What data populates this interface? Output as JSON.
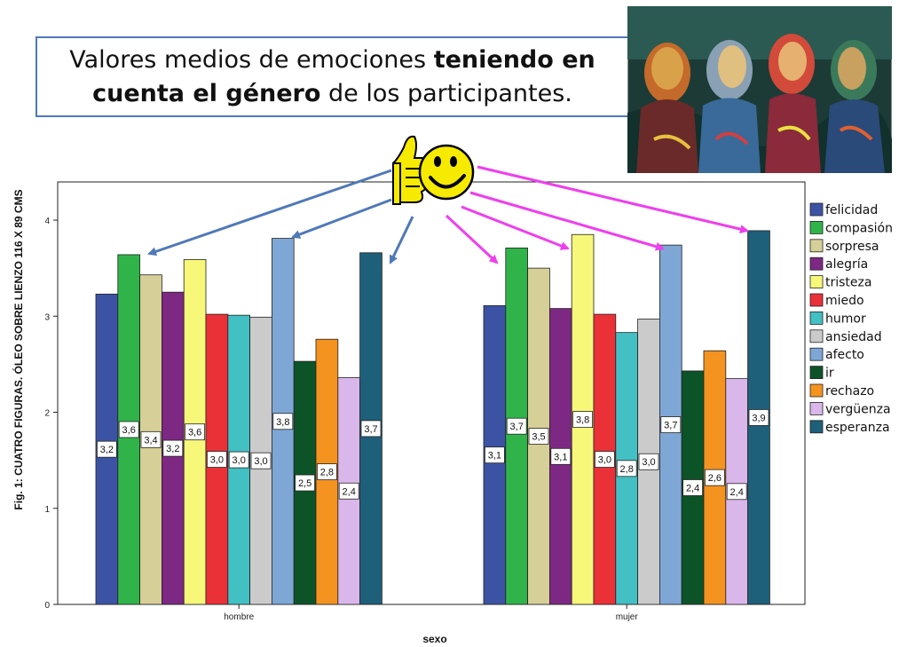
{
  "slide": {
    "title_part1": "Valores medios de emociones ",
    "title_bold1": "teniendo en",
    "title_bold2": "cuenta el género",
    "title_part2": " de los participantes.",
    "painting_icon": "expressionist-painting-four-figures",
    "emoji_icon": "thumbs-up-smiley-icon"
  },
  "chart_data": {
    "type": "bar",
    "title": "",
    "xlabel": "sexo",
    "ylabel": "Fig. 1: CUATRO FIGURAS. ÓLEO SOBRE LIENZO 116 X 89 CMS",
    "ylim": [
      0,
      4.2
    ],
    "yticks": [
      0,
      1,
      2,
      3,
      4
    ],
    "grid": false,
    "legend": "right",
    "categories": [
      "hombre",
      "mujer"
    ],
    "series": [
      {
        "name": "felicidad",
        "color": "#3c53a4",
        "values": [
          3.23,
          3.11
        ],
        "labels": [
          "3,2",
          "3,1"
        ]
      },
      {
        "name": "compasión",
        "color": "#30b44a",
        "values": [
          3.64,
          3.71
        ],
        "labels": [
          "3,6",
          "3,7"
        ]
      },
      {
        "name": "sorpresa",
        "color": "#d6cf97",
        "values": [
          3.43,
          3.5
        ],
        "labels": [
          "3,4",
          "3,5"
        ]
      },
      {
        "name": "alegría",
        "color": "#7d2883",
        "values": [
          3.25,
          3.08
        ],
        "labels": [
          "3,2",
          "3,1"
        ]
      },
      {
        "name": "tristeza",
        "color": "#f7f77a",
        "values": [
          3.59,
          3.85
        ],
        "labels": [
          "3,6",
          "3,8"
        ]
      },
      {
        "name": "miedo",
        "color": "#ea3138",
        "values": [
          3.02,
          3.02
        ],
        "labels": [
          "3,0",
          "3,0"
        ]
      },
      {
        "name": "humor",
        "color": "#42c0c3",
        "values": [
          3.01,
          2.83
        ],
        "labels": [
          "3,0",
          "2,8"
        ]
      },
      {
        "name": "ansiedad",
        "color": "#cbcbcb",
        "values": [
          2.99,
          2.97
        ],
        "labels": [
          "3,0",
          "3,0"
        ]
      },
      {
        "name": "afecto",
        "color": "#7ea7d6",
        "values": [
          3.81,
          3.74
        ],
        "labels": [
          "3,8",
          "3,7"
        ]
      },
      {
        "name": "ir",
        "color": "#0c5428",
        "values": [
          2.53,
          2.43
        ],
        "labels": [
          "2,5",
          "2,4"
        ]
      },
      {
        "name": "rechazo",
        "color": "#f49320",
        "values": [
          2.76,
          2.64
        ],
        "labels": [
          "2,8",
          "2,6"
        ]
      },
      {
        "name": "vergüenza",
        "color": "#dab7ea",
        "values": [
          2.36,
          2.35
        ],
        "labels": [
          "2,4",
          "2,4"
        ]
      },
      {
        "name": "esperanza",
        "color": "#1e5f79",
        "values": [
          3.66,
          3.89
        ],
        "labels": [
          "3,7",
          "3,9"
        ]
      }
    ]
  },
  "arrows": {
    "left_color": "#4f79b8",
    "right_color": "#ee3fee"
  }
}
